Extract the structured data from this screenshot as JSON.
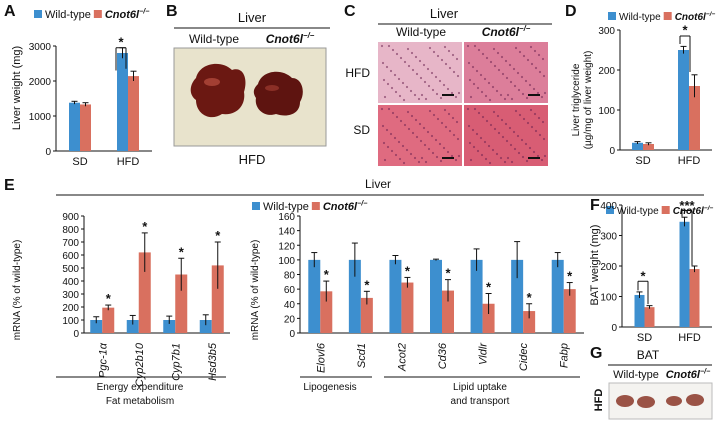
{
  "labels": {
    "cnot": "Cnot6l",
    "sup": "−/−"
  },
  "colors": {
    "wt": "#3d8fcf",
    "ko": "#d9705f",
    "axis": "#111111"
  },
  "panelA": {
    "letter": "A",
    "ylabel": "Liver weight (mg)",
    "legend_wt": "Wild-type",
    "ylim": [
      0,
      3000
    ],
    "yticks": [
      0,
      1000,
      2000,
      3000
    ],
    "chart_data": {
      "type": "bar",
      "categories": [
        "SD",
        "HFD"
      ],
      "series": [
        {
          "name": "Wild-type",
          "values": [
            1380,
            2800
          ],
          "err": [
            40,
            150
          ]
        },
        {
          "name": "Cnot6l−/−",
          "values": [
            1330,
            2140
          ],
          "err": [
            50,
            140
          ]
        }
      ]
    },
    "sig": "*"
  },
  "panelB": {
    "letter": "B",
    "title": "Liver",
    "wt": "Wild-type",
    "hfd": "HFD"
  },
  "panelC": {
    "letter": "C",
    "title": "Liver",
    "wt": "Wild-type",
    "row1": "HFD",
    "row2": "SD"
  },
  "panelD": {
    "letter": "D",
    "ylabel": "Liver triglyceride (µg/mg of liver weight)",
    "legend_wt": "Wild-type",
    "ylim": [
      0,
      300
    ],
    "yticks": [
      0,
      100,
      200,
      300
    ],
    "chart_data": {
      "type": "bar",
      "categories": [
        "SD",
        "HFD"
      ],
      "series": [
        {
          "name": "Wild-type",
          "values": [
            18,
            250
          ],
          "err": [
            3,
            9
          ]
        },
        {
          "name": "Cnot6l−/−",
          "values": [
            15,
            160
          ],
          "err": [
            3,
            28
          ]
        }
      ]
    },
    "sig": "*"
  },
  "panelE": {
    "letter": "E",
    "title": "Liver",
    "ylabel": "mRNA (% of wild-type)",
    "legend_wt": "Wild-type",
    "left": {
      "ylim": [
        0,
        900
      ],
      "yticks": [
        0,
        100,
        200,
        300,
        400,
        500,
        600,
        700,
        800,
        900
      ],
      "chart_data": {
        "type": "bar",
        "categories": [
          "Pgc-1α",
          "Cyp2b10",
          "Cyp7b1",
          "Hsd3b5"
        ],
        "series": [
          {
            "name": "Wild-type",
            "values": [
              100,
              100,
              100,
              100
            ],
            "err": [
              25,
              35,
              30,
              40
            ]
          },
          {
            "name": "Cnot6l−/−",
            "values": [
              195,
              620,
              450,
              520
            ],
            "err": [
              20,
              150,
              125,
              180
            ]
          }
        ],
        "sig": [
          "*",
          "*",
          "*",
          "*"
        ]
      },
      "group": "Energy expenditure\nFat metabolism"
    },
    "right": {
      "ylim": [
        0,
        160
      ],
      "yticks": [
        0,
        20,
        40,
        60,
        80,
        100,
        120,
        140,
        160
      ],
      "chart_data": {
        "type": "bar",
        "categories": [
          "Elovl6",
          "Scd1",
          "Acot2",
          "Cd36",
          "Vldlr",
          "Cidec",
          "Fabp"
        ],
        "series": [
          {
            "name": "Wild-type",
            "values": [
              100,
              100,
              100,
              100,
              100,
              100,
              100
            ],
            "err": [
              10,
              23,
              6,
              1,
              15,
              25,
              10
            ]
          },
          {
            "name": "Cnot6l−/−",
            "values": [
              57,
              48,
              69,
              58,
              40,
              30,
              60
            ],
            "err": [
              14,
              9,
              7,
              15,
              14,
              10,
              9
            ]
          }
        ],
        "sig": [
          "*",
          "*",
          "*",
          "*",
          "*",
          "*",
          "*"
        ]
      },
      "groups": [
        "Lipogenesis",
        "Lipid uptake\nand transport"
      ]
    }
  },
  "panelF": {
    "letter": "F",
    "ylabel": "BAT weight (mg)",
    "legend_wt": "Wild-type",
    "ylim": [
      0,
      400
    ],
    "yticks": [
      0,
      100,
      200,
      300,
      400
    ],
    "chart_data": {
      "type": "bar",
      "categories": [
        "SD",
        "HFD"
      ],
      "series": [
        {
          "name": "Wild-type",
          "values": [
            105,
            345
          ],
          "err": [
            10,
            15
          ]
        },
        {
          "name": "Cnot6l−/−",
          "values": [
            65,
            190
          ],
          "err": [
            5,
            10
          ]
        }
      ]
    },
    "sig": [
      "*",
      "***"
    ]
  },
  "panelG": {
    "letter": "G",
    "title": "BAT",
    "wt": "Wild-type",
    "row": "HFD"
  }
}
